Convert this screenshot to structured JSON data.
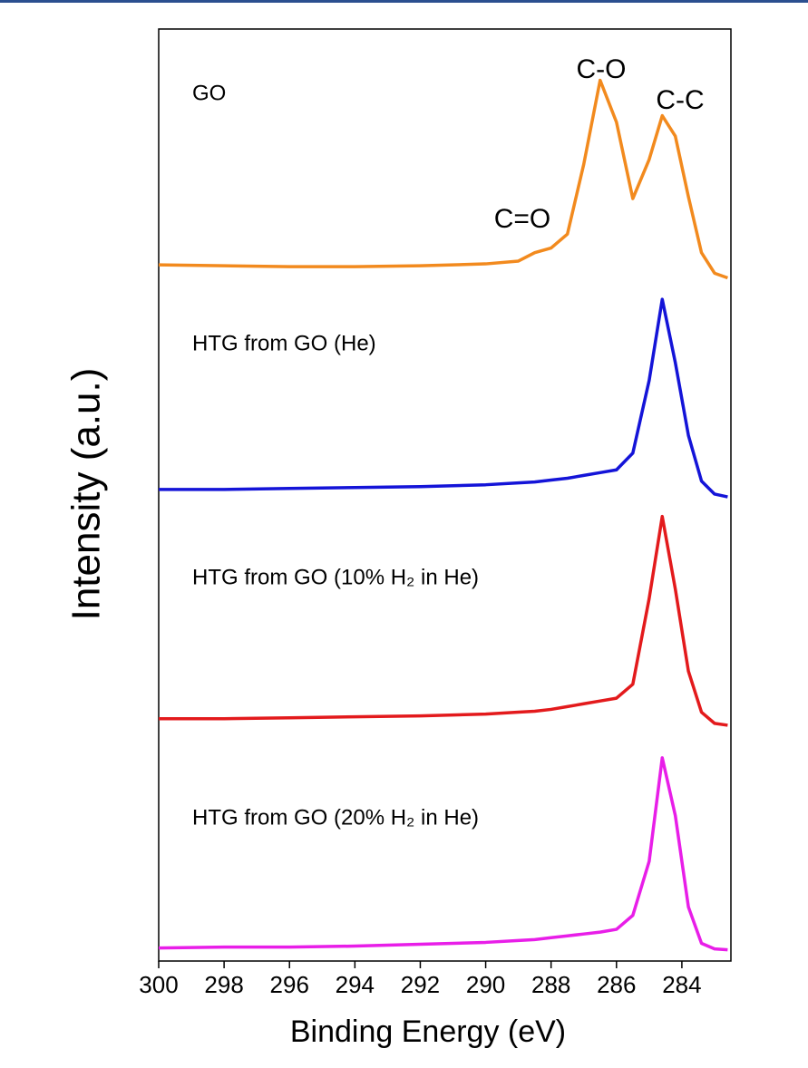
{
  "chart_data": {
    "type": "line",
    "x_label": "Binding Energy (eV)",
    "y_label": "Intensity (a.u.)",
    "xlim": [
      300,
      282.5
    ],
    "xticks": [
      300,
      298,
      296,
      294,
      292,
      290,
      288,
      286,
      284
    ],
    "ylim": [
      0,
      100
    ],
    "x": [
      300,
      298,
      296,
      294,
      292,
      290,
      289,
      288.5,
      288,
      287.5,
      287,
      286.5,
      286,
      285.5,
      285,
      284.6,
      284.2,
      283.8,
      283.4,
      283,
      282.6
    ],
    "series": [
      {
        "name": "GO",
        "color": "#f28a1e",
        "values": [
          74.7,
          74.6,
          74.5,
          74.5,
          74.6,
          74.8,
          75.1,
          76.0,
          76.5,
          78.0,
          85.5,
          94.5,
          90.0,
          81.8,
          86.0,
          90.7,
          88.5,
          82.0,
          76.0,
          73.8,
          73.3
        ]
      },
      {
        "name": "HTG from GO (He)",
        "color": "#1414d8",
        "values": [
          50.6,
          50.6,
          50.7,
          50.8,
          50.9,
          51.1,
          51.3,
          51.4,
          51.6,
          51.8,
          52.1,
          52.4,
          52.7,
          54.5,
          62.3,
          71.0,
          64.2,
          56.4,
          51.5,
          50.1,
          49.8
        ]
      },
      {
        "name": "HTG from GO (10% H₂ in He)",
        "color": "#e31a1c",
        "values": [
          26.0,
          26.0,
          26.1,
          26.2,
          26.3,
          26.5,
          26.7,
          26.8,
          27.0,
          27.3,
          27.6,
          27.9,
          28.2,
          29.7,
          38.9,
          47.7,
          39.9,
          31.1,
          26.7,
          25.5,
          25.3
        ]
      },
      {
        "name": "HTG from GO (20% H₂ in He)",
        "color": "#e81ee8",
        "values": [
          1.4,
          1.5,
          1.5,
          1.6,
          1.8,
          2.0,
          2.2,
          2.3,
          2.5,
          2.7,
          2.9,
          3.1,
          3.4,
          4.9,
          10.7,
          21.8,
          15.6,
          5.8,
          1.9,
          1.3,
          1.2
        ]
      }
    ],
    "annotations": [
      "C=O",
      "C-O",
      "C-C"
    ]
  }
}
